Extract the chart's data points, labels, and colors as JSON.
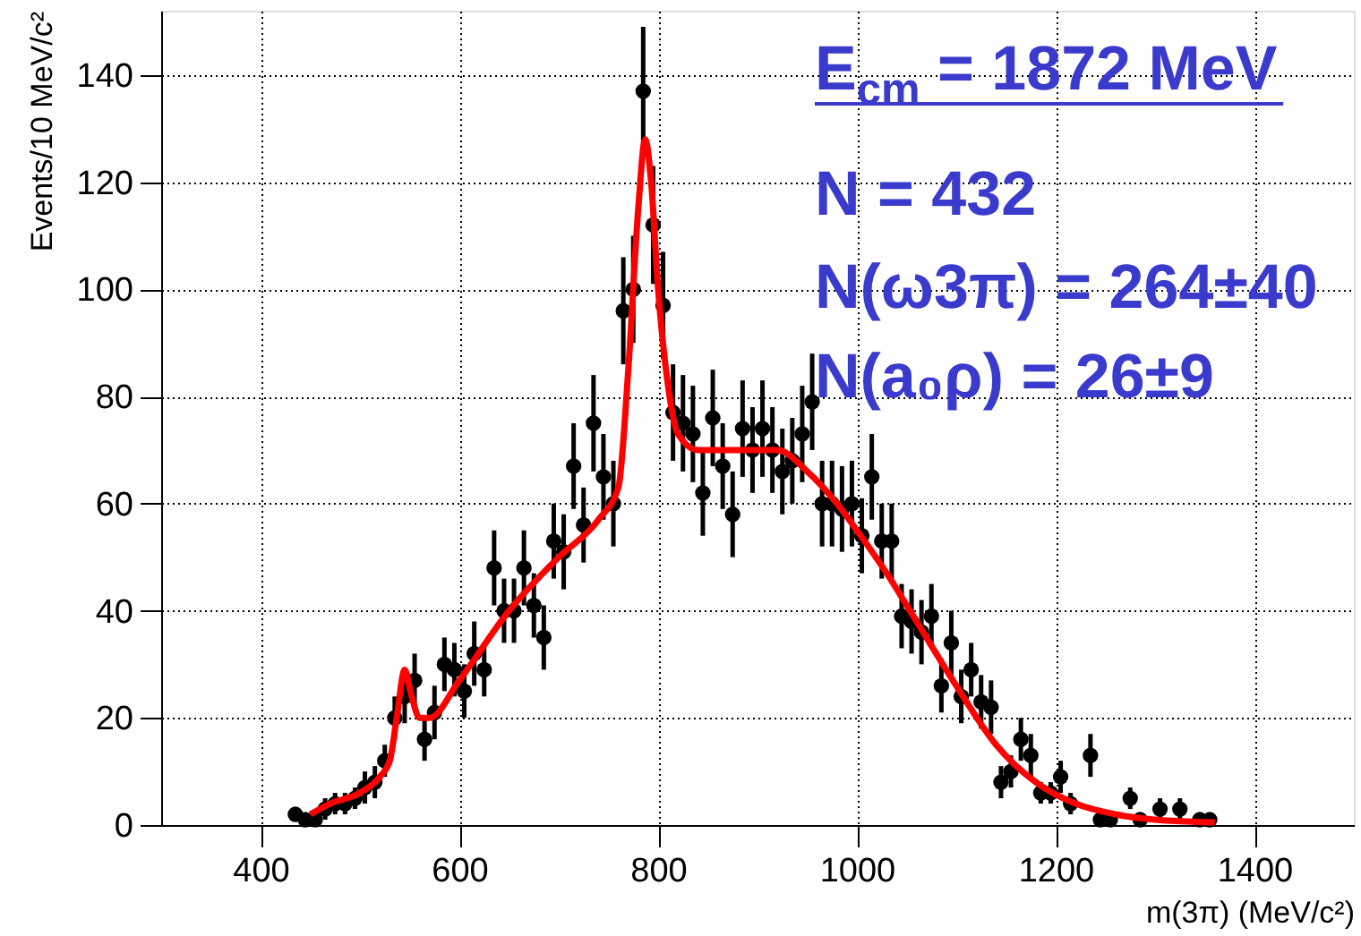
{
  "chart_data": {
    "type": "scatter",
    "xlabel": "m(3π) (MeV/c²)",
    "ylabel": "Events/10 MeV/c²",
    "xlim": [
      300,
      1500
    ],
    "xticks": [
      400,
      600,
      800,
      1000,
      1200,
      1400
    ],
    "ylim": [
      0,
      152
    ],
    "yticks": [
      0,
      20,
      40,
      60,
      80,
      100,
      120,
      140
    ],
    "grid": true,
    "marker": "circle",
    "annotations": [
      "E$_{cm}$ = 1872 MeV",
      "N  = 432",
      "N(ω3π) = 264±40",
      "N(a₀ρ) =   26±9"
    ],
    "series": [
      {
        "type": "scatter",
        "color": "#000000",
        "x": [
          435,
          445,
          455,
          465,
          475,
          485,
          495,
          505,
          515,
          525,
          535,
          545,
          555,
          565,
          575,
          585,
          595,
          605,
          615,
          625,
          635,
          645,
          655,
          665,
          675,
          685,
          695,
          705,
          715,
          725,
          735,
          745,
          755,
          765,
          775,
          785,
          795,
          805,
          815,
          825,
          835,
          845,
          855,
          865,
          875,
          885,
          895,
          905,
          915,
          925,
          935,
          945,
          955,
          965,
          975,
          985,
          995,
          1005,
          1015,
          1025,
          1035,
          1045,
          1055,
          1065,
          1075,
          1085,
          1095,
          1105,
          1115,
          1125,
          1135,
          1145,
          1155,
          1165,
          1175,
          1185,
          1195,
          1205,
          1215,
          1235,
          1245,
          1255,
          1275,
          1285,
          1305,
          1325,
          1345,
          1355
        ],
        "values": [
          2,
          1,
          1,
          3,
          4,
          4,
          5,
          7,
          8,
          12,
          20,
          24,
          27,
          16,
          21,
          30,
          29,
          25,
          32,
          29,
          48,
          40,
          40,
          48,
          41,
          35,
          53,
          51,
          67,
          56,
          75,
          65,
          60,
          96,
          100,
          137,
          112,
          97,
          77,
          75,
          73,
          62,
          76,
          67,
          58,
          74,
          70,
          74,
          70,
          66,
          68,
          73,
          79,
          60,
          60,
          59,
          60,
          54,
          65,
          53,
          53,
          39,
          38,
          36,
          39,
          26,
          34,
          24,
          29,
          23,
          22,
          8,
          10,
          16,
          13,
          6,
          6,
          9,
          4,
          13,
          1,
          1,
          5,
          1,
          3,
          3,
          1,
          1
        ],
        "errors": [
          1,
          1,
          1,
          2,
          2,
          2,
          2,
          3,
          3,
          3,
          4,
          5,
          5,
          4,
          5,
          5,
          5,
          5,
          6,
          5,
          7,
          6,
          6,
          7,
          6,
          6,
          7,
          7,
          8,
          7,
          9,
          8,
          8,
          10,
          10,
          12,
          11,
          10,
          9,
          9,
          9,
          8,
          9,
          8,
          8,
          9,
          8,
          9,
          8,
          8,
          8,
          9,
          9,
          8,
          8,
          8,
          8,
          7,
          8,
          7,
          7,
          6,
          6,
          6,
          6,
          5,
          6,
          5,
          5,
          5,
          5,
          3,
          3,
          4,
          4,
          2,
          2,
          3,
          2,
          4,
          1,
          1,
          2,
          1,
          2,
          2,
          1,
          1
        ]
      },
      {
        "type": "line",
        "color": "#ff0000",
        "line_style": "solid",
        "marker": "none",
        "x": [
          450,
          470,
          500,
          520,
          530,
          537,
          545,
          552,
          560,
          570,
          600,
          650,
          700,
          740,
          760,
          770,
          780,
          787,
          793,
          800,
          810,
          820,
          840,
          880,
          920,
          950,
          980,
          1000,
          1030,
          1060,
          1100,
          1140,
          1180,
          1220,
          1260,
          1300,
          1360
        ],
        "values": [
          2,
          4,
          6,
          9,
          12,
          20,
          29,
          24,
          20,
          20,
          27,
          40,
          50,
          57,
          63,
          85,
          115,
          128,
          120,
          100,
          82,
          73,
          70,
          70,
          70,
          66,
          60,
          55,
          47,
          38,
          26,
          15,
          8,
          4,
          2,
          1,
          0.5
        ]
      }
    ]
  }
}
